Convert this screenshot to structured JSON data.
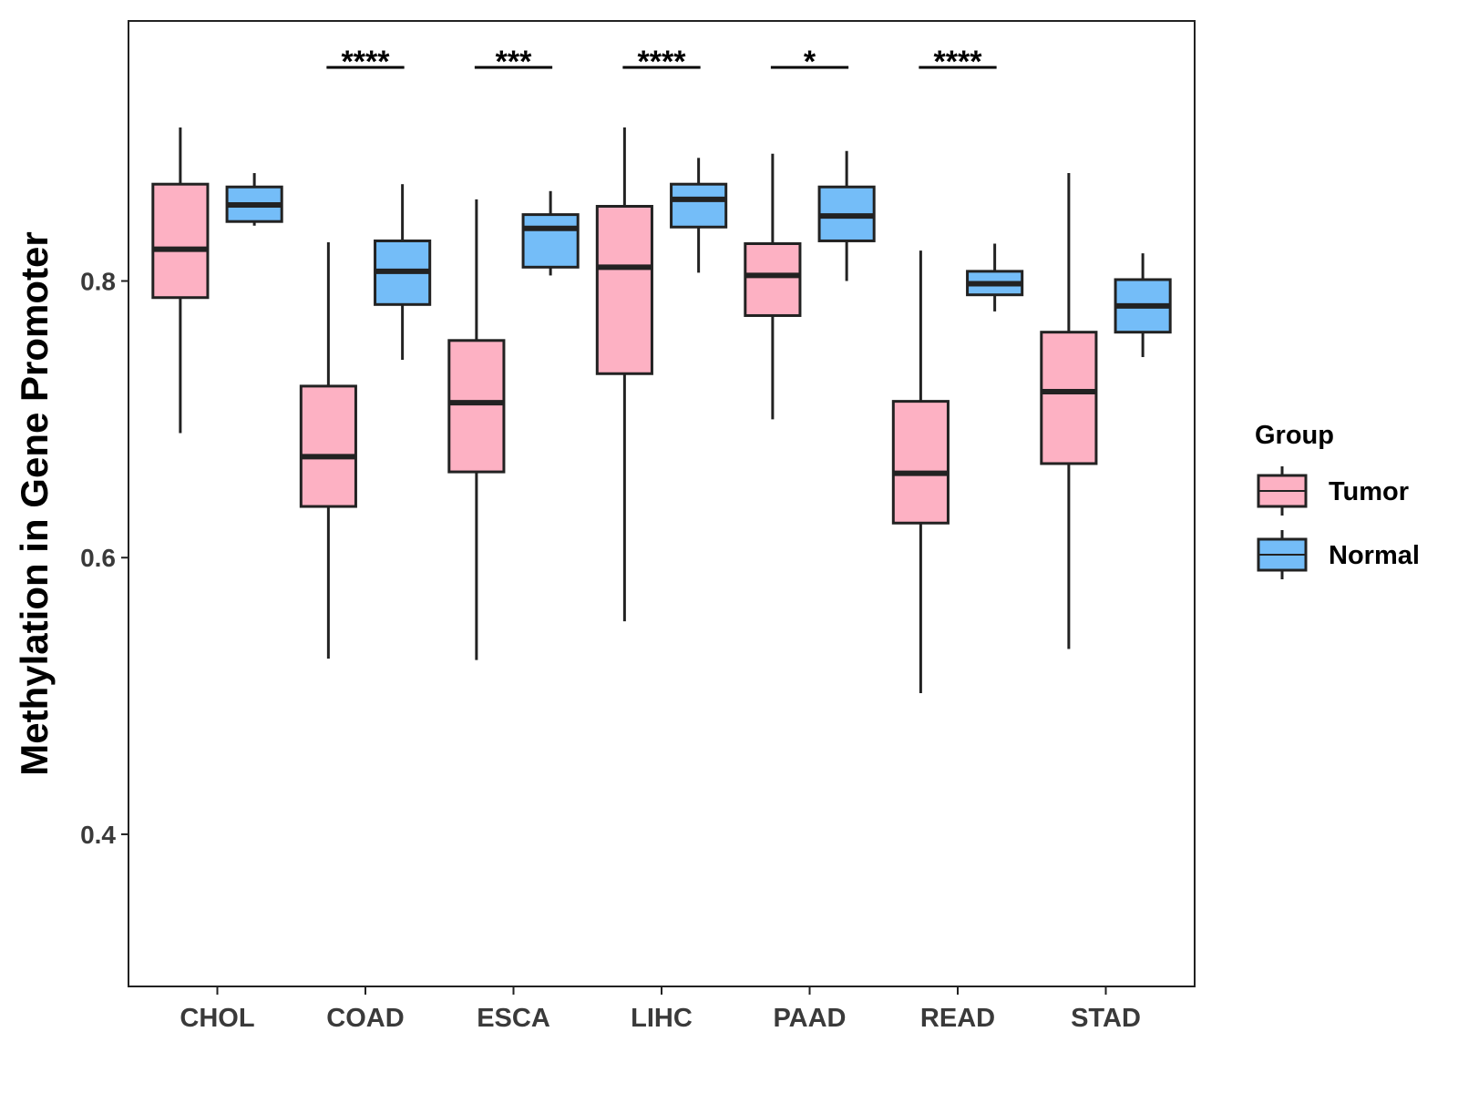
{
  "chart_data": {
    "type": "box",
    "title": "",
    "xlabel": "",
    "ylabel": "Methylation in Gene Promoter",
    "ylim": [
      0.29,
      0.988
    ],
    "yticks": [
      0.4,
      0.6,
      0.8
    ],
    "ytick_labels": [
      "0.4",
      "0.6",
      "0.8"
    ],
    "grid": false,
    "categories": [
      "CHOL",
      "COAD",
      "ESCA",
      "LIHC",
      "PAAD",
      "READ",
      "STAD"
    ],
    "legend": {
      "title": "Group",
      "position": "right",
      "entries": [
        {
          "name": "Tumor",
          "color": "#fdb1c3"
        },
        {
          "name": "Normal",
          "color": "#74bdf8"
        }
      ]
    },
    "series": [
      {
        "name": "Tumor",
        "color": "#fdb1c3",
        "boxes": [
          {
            "category": "CHOL",
            "min": 0.69,
            "q1": 0.788,
            "median": 0.823,
            "q3": 0.87,
            "max": 0.911
          },
          {
            "category": "COAD",
            "min": 0.527,
            "q1": 0.637,
            "median": 0.673,
            "q3": 0.724,
            "max": 0.828
          },
          {
            "category": "ESCA",
            "min": 0.526,
            "q1": 0.662,
            "median": 0.712,
            "q3": 0.757,
            "max": 0.859
          },
          {
            "category": "LIHC",
            "min": 0.554,
            "q1": 0.733,
            "median": 0.81,
            "q3": 0.854,
            "max": 0.911
          },
          {
            "category": "PAAD",
            "min": 0.7,
            "q1": 0.775,
            "median": 0.804,
            "q3": 0.827,
            "max": 0.892
          },
          {
            "category": "READ",
            "min": 0.502,
            "q1": 0.625,
            "median": 0.661,
            "q3": 0.713,
            "max": 0.822
          },
          {
            "category": "STAD",
            "min": 0.534,
            "q1": 0.668,
            "median": 0.72,
            "q3": 0.763,
            "max": 0.878
          }
        ]
      },
      {
        "name": "Normal",
        "color": "#74bdf8",
        "boxes": [
          {
            "category": "CHOL",
            "min": 0.84,
            "q1": 0.843,
            "median": 0.855,
            "q3": 0.868,
            "max": 0.878
          },
          {
            "category": "COAD",
            "min": 0.743,
            "q1": 0.783,
            "median": 0.807,
            "q3": 0.829,
            "max": 0.87
          },
          {
            "category": "ESCA",
            "min": 0.804,
            "q1": 0.81,
            "median": 0.838,
            "q3": 0.848,
            "max": 0.865
          },
          {
            "category": "LIHC",
            "min": 0.806,
            "q1": 0.839,
            "median": 0.859,
            "q3": 0.87,
            "max": 0.889
          },
          {
            "category": "PAAD",
            "min": 0.8,
            "q1": 0.829,
            "median": 0.847,
            "q3": 0.868,
            "max": 0.894
          },
          {
            "category": "READ",
            "min": 0.778,
            "q1": 0.79,
            "median": 0.798,
            "q3": 0.807,
            "max": 0.827
          },
          {
            "category": "STAD",
            "min": 0.745,
            "q1": 0.763,
            "median": 0.782,
            "q3": 0.801,
            "max": 0.82
          }
        ]
      }
    ],
    "significance": [
      {
        "category": "COAD",
        "label": "****"
      },
      {
        "category": "ESCA",
        "label": "***"
      },
      {
        "category": "LIHC",
        "label": "****"
      },
      {
        "category": "PAAD",
        "label": "*"
      },
      {
        "category": "READ",
        "label": "****"
      }
    ]
  }
}
